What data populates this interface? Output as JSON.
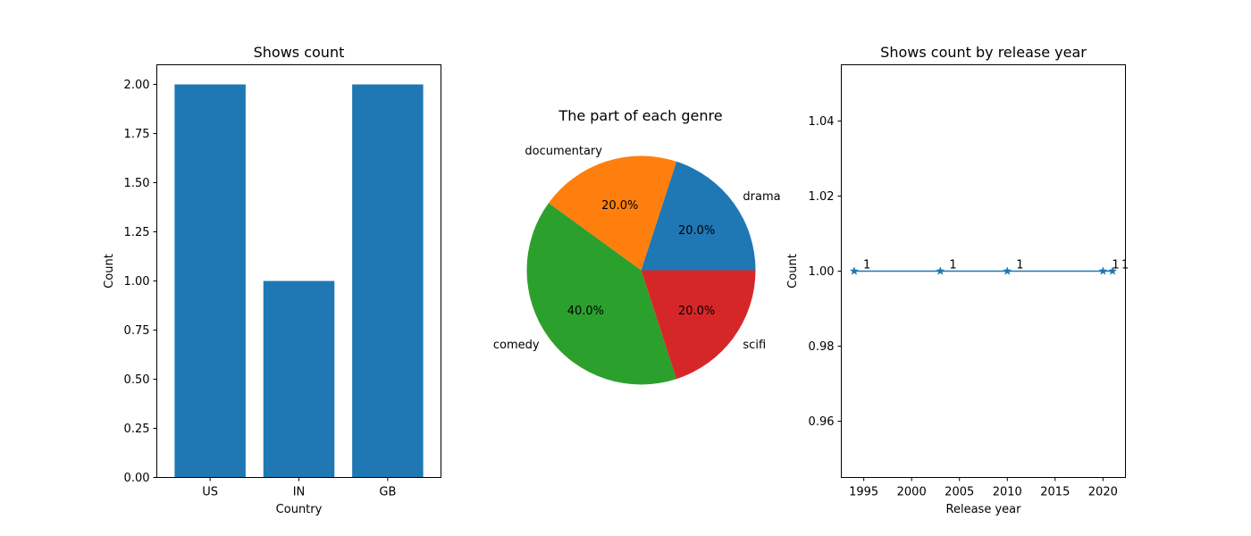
{
  "chart_data": [
    {
      "type": "bar",
      "title": "Shows count",
      "xlabel": "Country",
      "ylabel": "Count",
      "categories": [
        "US",
        "IN",
        "GB"
      ],
      "values": [
        2,
        1,
        2
      ],
      "ylim": [
        0,
        2.1
      ],
      "yticks": [
        "0.00",
        "0.25",
        "0.50",
        "0.75",
        "1.00",
        "1.25",
        "1.50",
        "1.75",
        "2.00"
      ],
      "color": "#1f77b4",
      "grid": false
    },
    {
      "type": "pie",
      "title": "The part of each genre",
      "labels": [
        "drama",
        "documentary",
        "comedy",
        "scifi"
      ],
      "values": [
        20,
        20,
        40,
        20
      ],
      "percent_labels": [
        "20.0%",
        "20.0%",
        "40.0%",
        "20.0%"
      ],
      "colors": [
        "#1f77b4",
        "#ff7f0e",
        "#2ca02c",
        "#d62728"
      ]
    },
    {
      "type": "line",
      "title": "Shows count by release year",
      "xlabel": "Release year",
      "ylabel": "Count",
      "x": [
        1994,
        2003,
        2010,
        2020,
        2021
      ],
      "y": [
        1,
        1,
        1,
        1,
        1
      ],
      "point_labels": [
        "1",
        "1",
        "1",
        "1",
        "1"
      ],
      "xlim": [
        1992.65,
        2022.35
      ],
      "ylim": [
        0.945,
        1.055
      ],
      "xticks": [
        "1995",
        "2000",
        "2005",
        "2010",
        "2015",
        "2020"
      ],
      "yticks": [
        "0.96",
        "0.98",
        "1.00",
        "1.02",
        "1.04"
      ],
      "marker": "star",
      "color": "#1f77b4",
      "grid": false
    }
  ]
}
